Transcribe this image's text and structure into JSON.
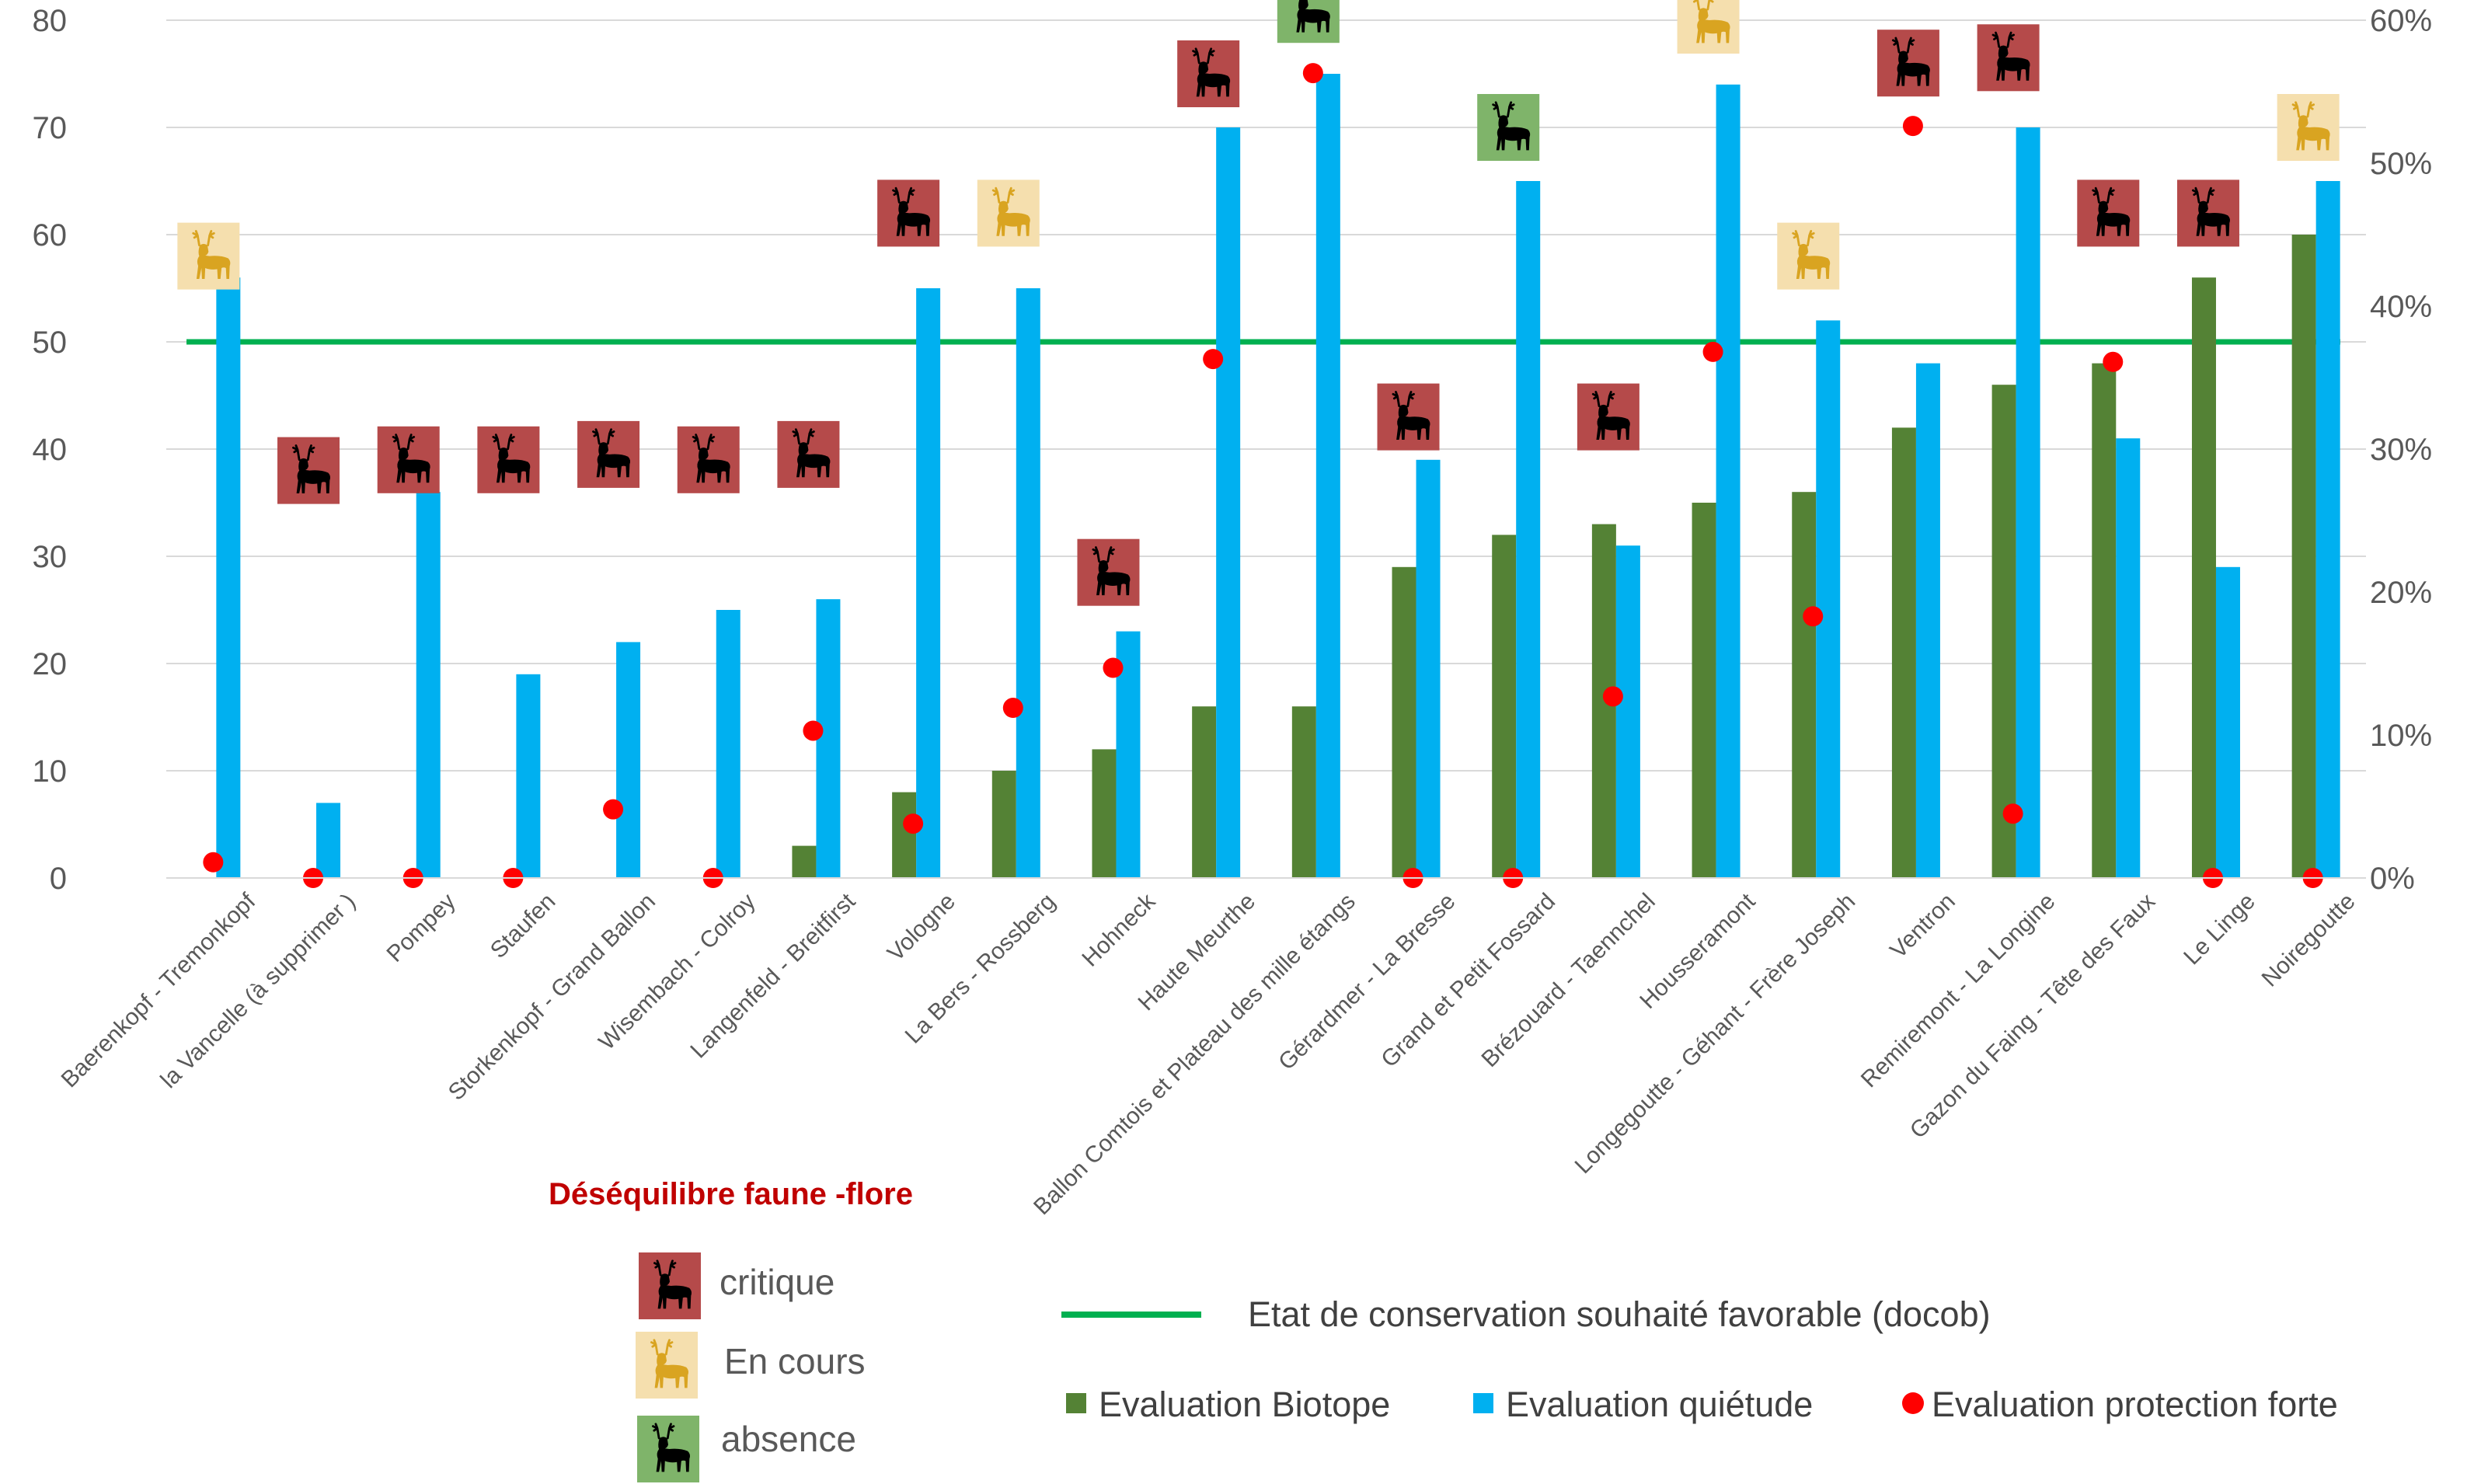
{
  "chart_data": {
    "type": "bar",
    "categories": [
      "Baerenkopf - Tremonkopf",
      "la Vancelle (à supprimer )",
      "Pompey",
      "Staufen",
      "Storkenkopf - Grand Ballon",
      "Wisembach - Colroy",
      "Langenfeld - Breitfirst",
      "Vologne",
      "La Bers - Rossberg",
      "Hohneck",
      "Haute Meurthe",
      "Ballon Comtois et Plateau des mille étangs",
      "Gérardmer - La Bresse",
      "Grand et Petit Fossard",
      "Brézouard - Taennchel",
      "Housseramont",
      "Longegoutte - Géhant - Frère Joseph",
      "Ventron",
      "Remiremont - La Longine",
      "Gazon du Faing - Tête des Faux",
      "Le Linge",
      "Noiregoutte"
    ],
    "series": [
      {
        "name": "Evaluation Biotope",
        "axis": "left",
        "type": "bar",
        "color": "#548235",
        "values": [
          0,
          0,
          0,
          0,
          0,
          0,
          3,
          8,
          10,
          12,
          16,
          16,
          29,
          32,
          33,
          35,
          36,
          42,
          46,
          48,
          56,
          60
        ]
      },
      {
        "name": "Evaluation quiétude",
        "axis": "left",
        "type": "bar",
        "color": "#00b0f0",
        "values": [
          56,
          7,
          36,
          19,
          22,
          25,
          26,
          55,
          55,
          23,
          70,
          75,
          39,
          65,
          31,
          74,
          52,
          48,
          70,
          41,
          29,
          65
        ]
      },
      {
        "name": "Evaluation protection forte",
        "axis": "right",
        "type": "scatter",
        "color": "#ff0000",
        "values": [
          1.1,
          0,
          0,
          0,
          4.8,
          0,
          10.3,
          3.8,
          11.9,
          14.7,
          36.3,
          56.3,
          0,
          0,
          12.7,
          36.8,
          18.3,
          52.6,
          4.5,
          36.1,
          0,
          0
        ]
      }
    ],
    "reference_line": {
      "name": "Etat de conservation souhaité favorable (docob)",
      "value": 50,
      "color": "#00b050"
    },
    "pressure_status": [
      "En cours",
      "critique",
      "critique",
      "critique",
      "critique",
      "critique",
      "critique",
      "critique",
      "En cours",
      "critique",
      "critique",
      "absence",
      "critique",
      "absence",
      "critique",
      "En cours",
      "En cours",
      "critique",
      "critique",
      "critique",
      "critique",
      "En cours"
    ],
    "pressure_icon_value": [
      58,
      38,
      39,
      39,
      39.5,
      39,
      39.5,
      62,
      62,
      28.5,
      75,
      81,
      43,
      70,
      43,
      80,
      58,
      76,
      76.5,
      62,
      62,
      70
    ],
    "ylim": [
      0,
      80
    ],
    "yticks": [
      "0",
      "10",
      "20",
      "30",
      "40",
      "50",
      "60",
      "70",
      "80"
    ],
    "y2lim": [
      0,
      60
    ],
    "y2ticks": [
      "0%",
      "10%",
      "20%",
      "30%",
      "40%",
      "50%",
      "60%"
    ],
    "grid": true,
    "legend_position": "bottom-right"
  },
  "legend": {
    "title": "Déséquilibre faune -flore",
    "items": [
      {
        "label": "critique",
        "icon": "stag-icon",
        "bg": "#b54a4a",
        "fg": "#000000"
      },
      {
        "label": "En cours",
        "icon": "stag-icon",
        "bg": "#f5dfae",
        "fg": "#d9a421"
      },
      {
        "label": "absence",
        "icon": "stag-icon",
        "bg": "#7fb46a",
        "fg": "#000000"
      }
    ],
    "reference_label": "Etat de conservation souhaité favorable (docob)",
    "series_labels": [
      "Evaluation Biotope",
      "Evaluation quiétude",
      "Evaluation protection forte"
    ]
  },
  "status_colors": {
    "critique": {
      "bg": "#b54a4a",
      "fg": "#000000"
    },
    "En cours": {
      "bg": "#f5dfae",
      "fg": "#d9a421"
    },
    "absence": {
      "bg": "#7fb46a",
      "fg": "#000000"
    }
  }
}
